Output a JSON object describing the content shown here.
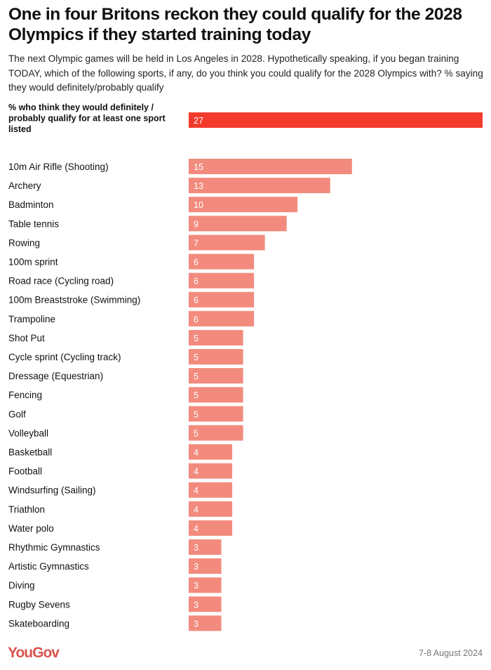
{
  "chart_data": {
    "type": "bar",
    "orientation": "horizontal",
    "title": "One in four Britons reckon they could qualify for the 2028 Olympics if they started training today",
    "subtitle": "The next Olympic games will be held in Los Angeles in 2028. Hypothetically speaking, if you began training TODAY, which of the following sports, if any, do you think you could qualify for the 2028 Olympics with? % saying they would definitely/probably qualify",
    "summary": {
      "label": "% who think they would definitely / probably qualify for at least one sport listed",
      "label_lines": [
        "% who think they would definitely /",
        "probably qualify for at least one sport",
        "listed"
      ],
      "value": 27,
      "color": "#f23b2c"
    },
    "categories": [
      "10m Air Rifle (Shooting)",
      "Archery",
      "Badminton",
      "Table tennis",
      "Rowing",
      "100m sprint",
      "Road race (Cycling road)",
      "100m Breaststroke (Swimming)",
      "Trampoline",
      "Shot Put",
      "Cycle sprint (Cycling track)",
      "Dressage (Equestrian)",
      "Fencing",
      "Golf",
      "Volleyball",
      "Basketball",
      "Football",
      "Windsurfing (Sailing)",
      "Triathlon",
      "Water polo",
      "Rhythmic Gymnastics",
      "Artistic Gymnastics",
      "Diving",
      "Rugby Sevens",
      "Skateboarding"
    ],
    "values": [
      15,
      13,
      10,
      9,
      7,
      6,
      6,
      6,
      6,
      5,
      5,
      5,
      5,
      5,
      5,
      4,
      4,
      4,
      4,
      4,
      3,
      3,
      3,
      3,
      3
    ],
    "bar_color": "#f28b7e",
    "xlim": [
      0,
      27
    ],
    "grid": false,
    "data_labels": true
  },
  "footer": {
    "brand": "YouGov",
    "date": "7-8 August 2024"
  }
}
